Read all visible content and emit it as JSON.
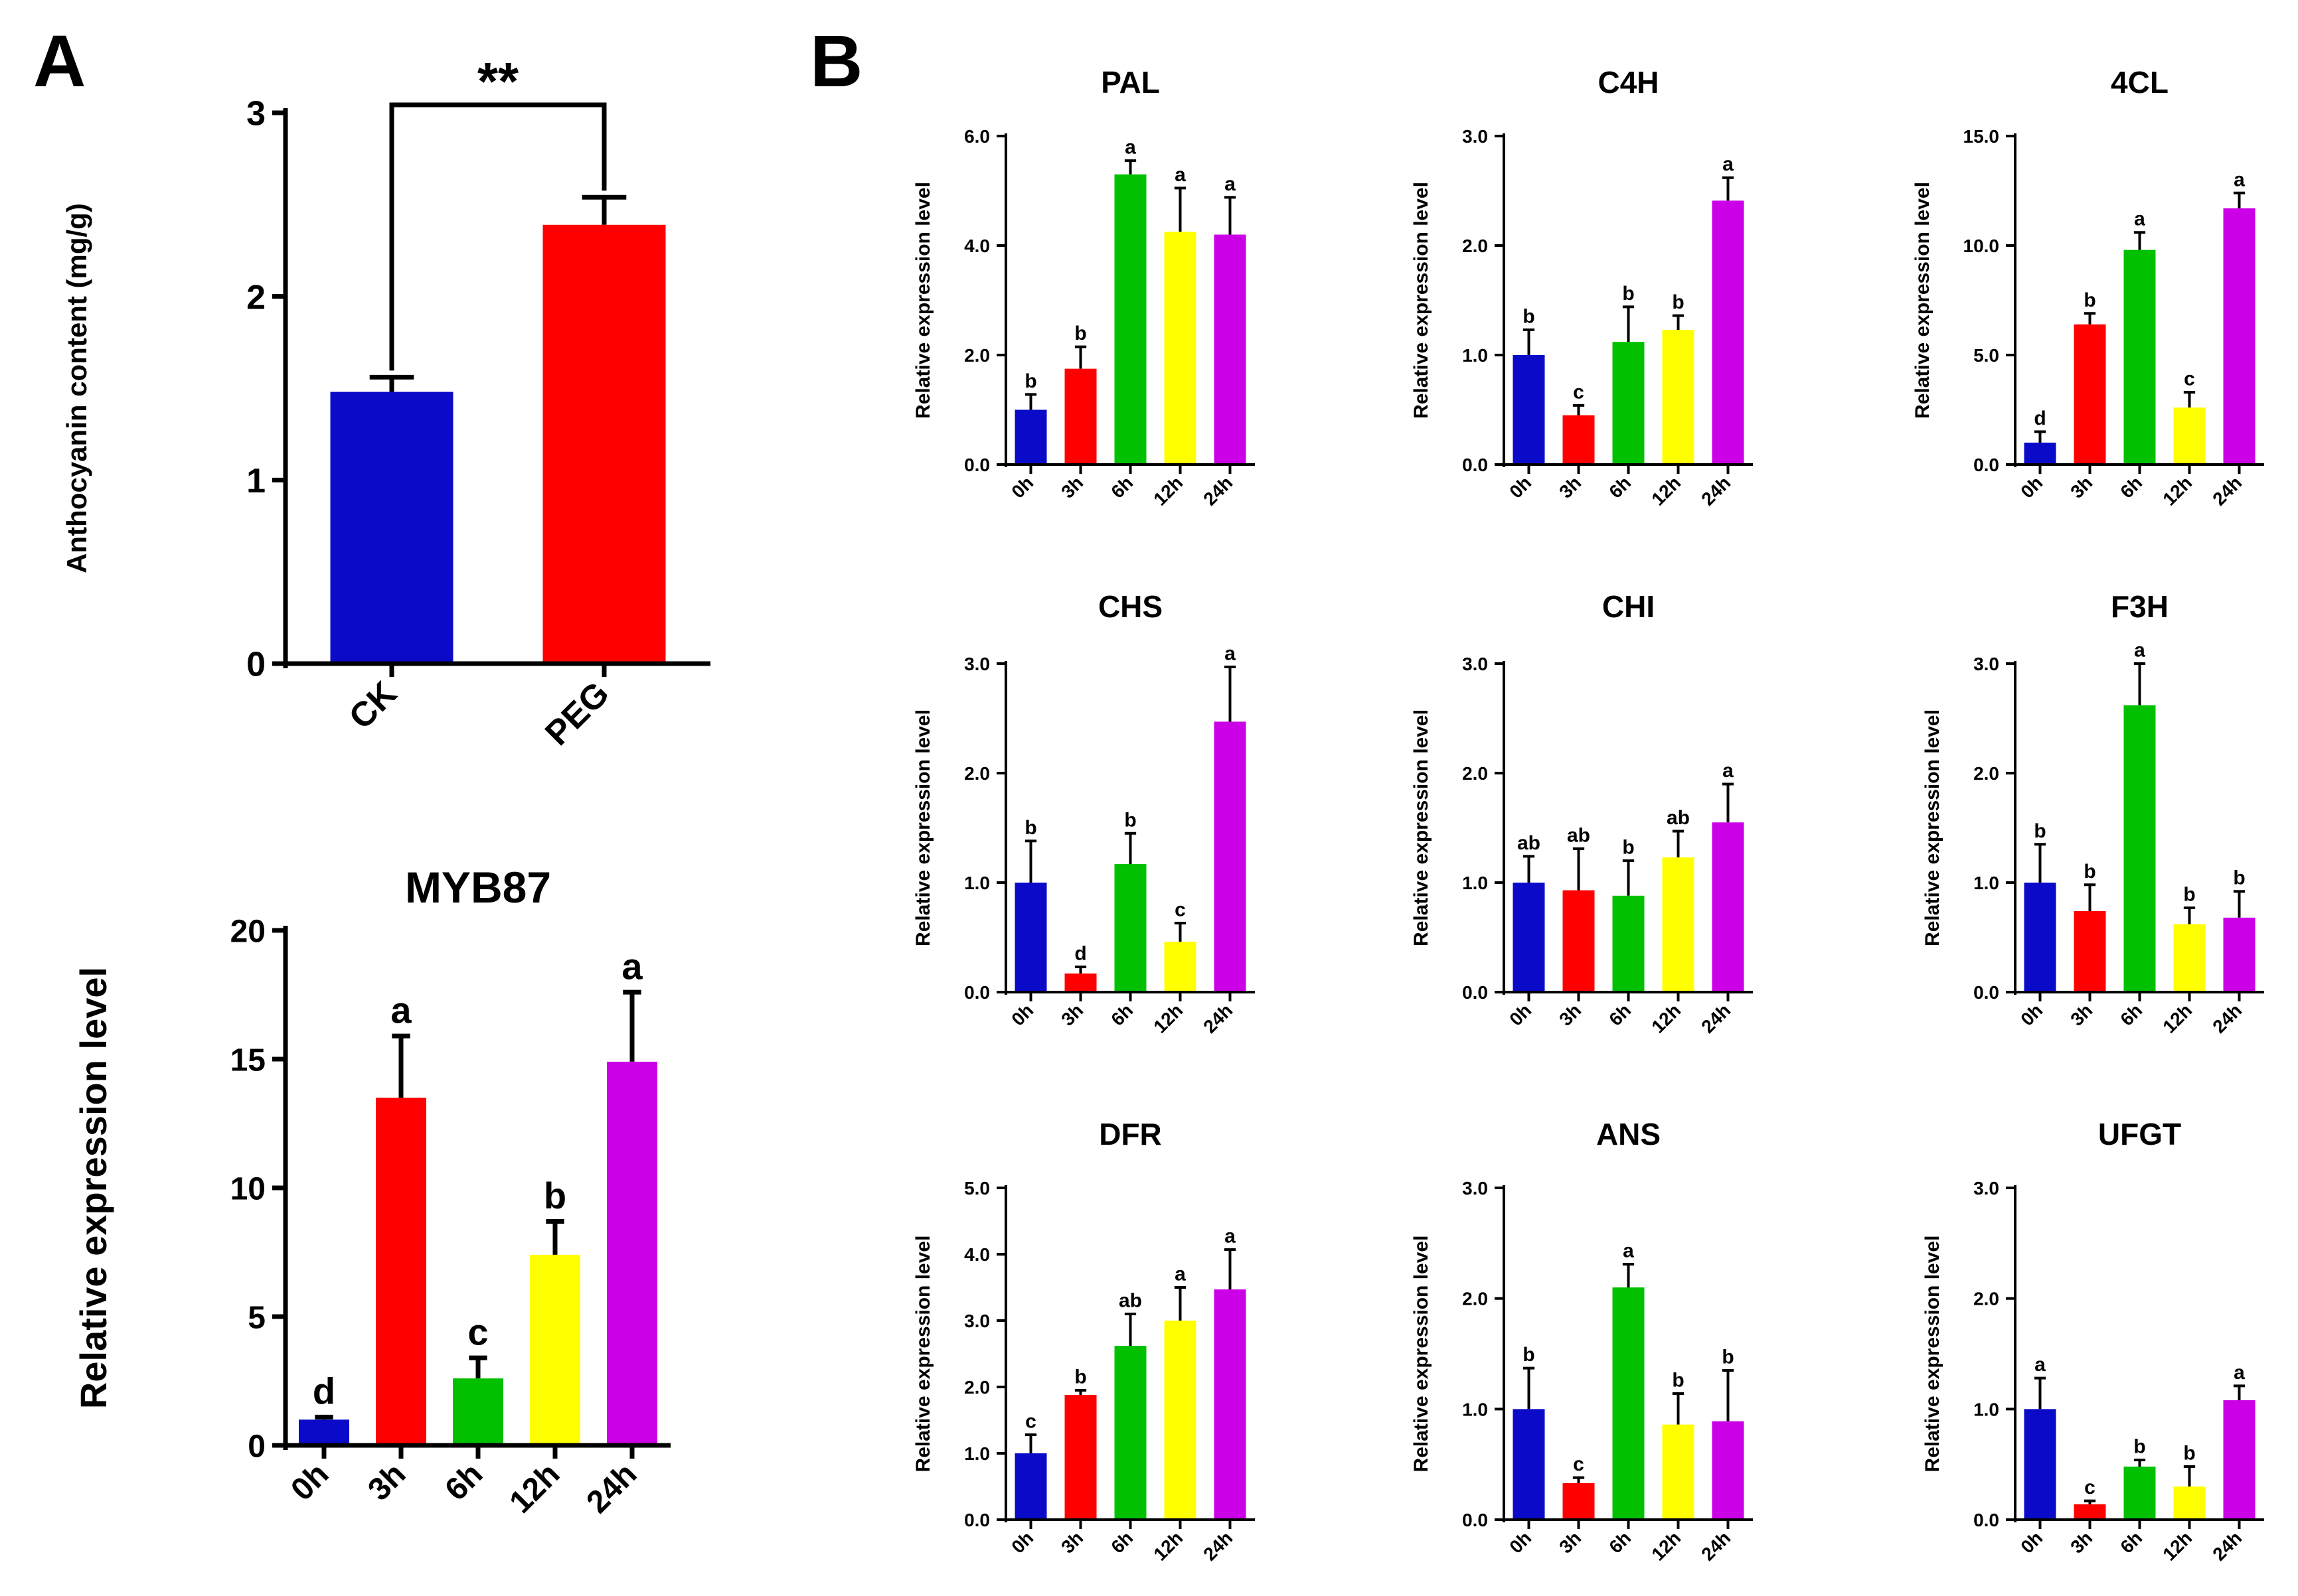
{
  "panel_labels": {
    "a": "A",
    "b": "B"
  },
  "colors": {
    "0h": "#0a0ac8",
    "3h": "#ff0000",
    "6h": "#00c000",
    "12h": "#ffff00",
    "24h": "#cc00e6",
    "CK": "#0a0ac8",
    "PEG": "#ff0000",
    "axis": "#000000"
  },
  "chart_data": [
    {
      "id": "anthocyanin",
      "type": "bar",
      "title": "",
      "categories": [
        "CK",
        "PEG"
      ],
      "values": [
        1.48,
        2.39
      ],
      "errors": [
        0.08,
        0.15
      ],
      "ylabel": "Anthocyanin content (mg/g)",
      "ylim": [
        0,
        3
      ],
      "yticks": [
        0,
        1,
        2,
        3
      ],
      "ytick_labels": [
        "0",
        "1",
        "2",
        "3"
      ],
      "bar_colors": [
        "#0a0ac8",
        "#ff0000"
      ],
      "significance": "**"
    },
    {
      "id": "MYB87",
      "type": "bar",
      "title": "MYB87",
      "categories": [
        "0h",
        "3h",
        "6h",
        "12h",
        "24h"
      ],
      "values": [
        1.0,
        13.5,
        2.6,
        7.4,
        14.9
      ],
      "errors": [
        0.1,
        2.4,
        0.8,
        1.3,
        2.7
      ],
      "letters": [
        "d",
        "a",
        "c",
        "b",
        "a"
      ],
      "ylabel": "Relative expression level",
      "ylim": [
        0,
        20
      ],
      "yticks": [
        0,
        5,
        10,
        15,
        20
      ],
      "ytick_labels": [
        "0",
        "5",
        "10",
        "15",
        "20"
      ]
    },
    {
      "id": "PAL",
      "type": "bar",
      "title": "PAL",
      "categories": [
        "0h",
        "3h",
        "6h",
        "12h",
        "24h"
      ],
      "values": [
        1.0,
        1.75,
        5.3,
        4.25,
        4.2
      ],
      "errors": [
        0.28,
        0.4,
        0.25,
        0.8,
        0.68
      ],
      "letters": [
        "b",
        "b",
        "a",
        "a",
        "a"
      ],
      "ylabel": "Relative expression level",
      "ylim": [
        0,
        6
      ],
      "yticks": [
        0,
        2,
        4,
        6
      ],
      "ytick_labels": [
        "0.0",
        "2.0",
        "4.0",
        "6.0"
      ]
    },
    {
      "id": "C4H",
      "type": "bar",
      "title": "C4H",
      "categories": [
        "0h",
        "3h",
        "6h",
        "12h",
        "24h"
      ],
      "values": [
        1.0,
        0.45,
        1.12,
        1.23,
        2.41
      ],
      "errors": [
        0.23,
        0.09,
        0.32,
        0.13,
        0.21
      ],
      "letters": [
        "b",
        "c",
        "b",
        "b",
        "a"
      ],
      "ylabel": "Relative expression level",
      "ylim": [
        0,
        3
      ],
      "yticks": [
        0,
        1,
        2,
        3
      ],
      "ytick_labels": [
        "0.0",
        "1.0",
        "2.0",
        "3.0"
      ]
    },
    {
      "id": "4CL",
      "type": "bar",
      "title": "4CL",
      "categories": [
        "0h",
        "3h",
        "6h",
        "12h",
        "24h"
      ],
      "values": [
        1.0,
        6.4,
        9.8,
        2.6,
        11.7
      ],
      "errors": [
        0.5,
        0.5,
        0.8,
        0.7,
        0.7
      ],
      "letters": [
        "d",
        "b",
        "a",
        "c",
        "a"
      ],
      "ylabel": "Relative expression level",
      "ylim": [
        0,
        15
      ],
      "yticks": [
        0,
        5,
        10,
        15
      ],
      "ytick_labels": [
        "0.0",
        "5.0",
        "10.0",
        "15.0"
      ]
    },
    {
      "id": "CHS",
      "type": "bar",
      "title": "CHS",
      "categories": [
        "0h",
        "3h",
        "6h",
        "12h",
        "24h"
      ],
      "values": [
        1.0,
        0.17,
        1.17,
        0.46,
        2.47
      ],
      "errors": [
        0.38,
        0.06,
        0.28,
        0.17,
        0.5
      ],
      "letters": [
        "b",
        "d",
        "b",
        "c",
        "a"
      ],
      "ylabel": "Relative expression level",
      "ylim": [
        0,
        3
      ],
      "yticks": [
        0,
        1,
        2,
        3
      ],
      "ytick_labels": [
        "0.0",
        "1.0",
        "2.0",
        "3.0"
      ]
    },
    {
      "id": "CHI",
      "type": "bar",
      "title": "CHI",
      "categories": [
        "0h",
        "3h",
        "6h",
        "12h",
        "24h"
      ],
      "values": [
        1.0,
        0.93,
        0.88,
        1.23,
        1.55
      ],
      "errors": [
        0.24,
        0.38,
        0.32,
        0.24,
        0.35
      ],
      "letters": [
        "ab",
        "ab",
        "b",
        "ab",
        "a"
      ],
      "ylabel": "Relative expression level",
      "ylim": [
        0,
        3
      ],
      "yticks": [
        0,
        1,
        2,
        3
      ],
      "ytick_labels": [
        "0.0",
        "1.0",
        "2.0",
        "3.0"
      ]
    },
    {
      "id": "F3H",
      "type": "bar",
      "title": "F3H",
      "categories": [
        "0h",
        "3h",
        "6h",
        "12h",
        "24h"
      ],
      "values": [
        1.0,
        0.74,
        2.62,
        0.62,
        0.68
      ],
      "errors": [
        0.35,
        0.24,
        0.38,
        0.15,
        0.24
      ],
      "letters": [
        "b",
        "b",
        "a",
        "b",
        "b"
      ],
      "ylabel": "Relative expression level",
      "ylim": [
        0,
        3
      ],
      "yticks": [
        0,
        1,
        2,
        3
      ],
      "ytick_labels": [
        "0.0",
        "1.0",
        "2.0",
        "3.0"
      ]
    },
    {
      "id": "DFR",
      "type": "bar",
      "title": "DFR",
      "categories": [
        "0h",
        "3h",
        "6h",
        "12h",
        "24h"
      ],
      "values": [
        1.0,
        1.88,
        2.62,
        3.0,
        3.47
      ],
      "errors": [
        0.28,
        0.07,
        0.48,
        0.5,
        0.6
      ],
      "letters": [
        "c",
        "b",
        "ab",
        "a",
        "a"
      ],
      "ylabel": "Relative expression level",
      "ylim": [
        0,
        5
      ],
      "yticks": [
        0,
        1,
        2,
        3,
        4,
        5
      ],
      "ytick_labels": [
        "0.0",
        "1.0",
        "2.0",
        "3.0",
        "4.0",
        "5.0"
      ]
    },
    {
      "id": "ANS",
      "type": "bar",
      "title": "ANS",
      "categories": [
        "0h",
        "3h",
        "6h",
        "12h",
        "24h"
      ],
      "values": [
        1.0,
        0.33,
        2.1,
        0.86,
        0.89
      ],
      "errors": [
        0.37,
        0.05,
        0.21,
        0.28,
        0.46
      ],
      "letters": [
        "b",
        "c",
        "a",
        "b",
        "b"
      ],
      "ylabel": "Relative expression level",
      "ylim": [
        0,
        3
      ],
      "yticks": [
        0,
        1,
        2,
        3
      ],
      "ytick_labels": [
        "0.0",
        "1.0",
        "2.0",
        "3.0"
      ]
    },
    {
      "id": "UFGT",
      "type": "bar",
      "title": "UFGT",
      "categories": [
        "0h",
        "3h",
        "6h",
        "12h",
        "24h"
      ],
      "values": [
        1.0,
        0.14,
        0.48,
        0.3,
        1.08
      ],
      "errors": [
        0.28,
        0.03,
        0.06,
        0.18,
        0.13
      ],
      "letters": [
        "a",
        "c",
        "b",
        "b",
        "a"
      ],
      "ylabel": "Relative expression level",
      "ylim": [
        0,
        3
      ],
      "yticks": [
        0,
        1,
        2,
        3
      ],
      "ytick_labels": [
        "0.0",
        "1.0",
        "2.0",
        "3.0"
      ]
    }
  ]
}
